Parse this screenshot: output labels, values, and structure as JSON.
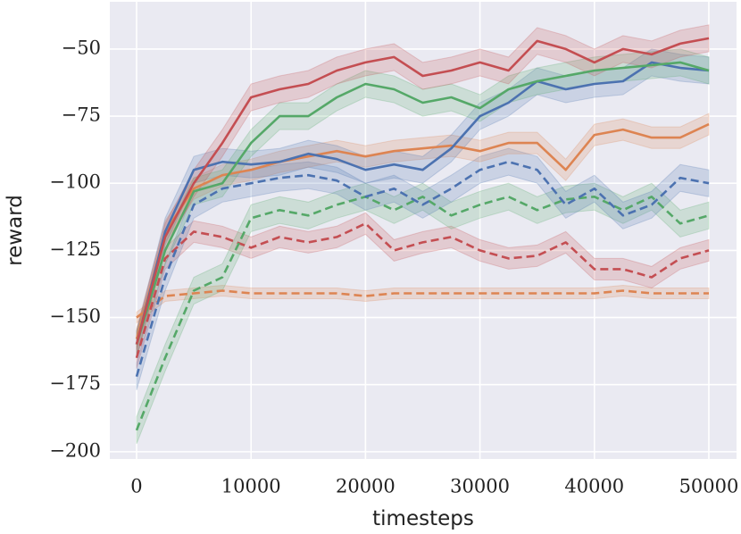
{
  "chart_data": {
    "type": "line",
    "x_label": "timesteps",
    "y_label": "reward",
    "x": [
      0,
      2500,
      5000,
      7500,
      10000,
      12500,
      15000,
      17500,
      20000,
      22500,
      25000,
      27500,
      30000,
      32500,
      35000,
      37500,
      40000,
      42500,
      45000,
      47500,
      50000
    ],
    "xlim": [
      -2340,
      52420
    ],
    "ylim": [
      -202.7,
      -32.4
    ],
    "xticks": [
      0,
      10000,
      20000,
      30000,
      40000,
      50000
    ],
    "yticks": [
      {
        "value": -200,
        "label": "−200"
      },
      {
        "value": -175,
        "label": "−175"
      },
      {
        "value": -150,
        "label": "−150"
      },
      {
        "value": -125,
        "label": "−125"
      },
      {
        "value": -100,
        "label": "−100"
      },
      {
        "value": -75,
        "label": "−75"
      },
      {
        "value": -50,
        "label": "−50"
      }
    ],
    "grid": true,
    "series": [
      {
        "color": "#dd8452",
        "linestyle": "dashed",
        "spread": 2,
        "values": [
          -150,
          -142,
          -141,
          -140,
          -141,
          -141,
          -141,
          -141,
          -142,
          -141,
          -141,
          -141,
          -141,
          -141,
          -141,
          -141,
          -141,
          -140,
          -141,
          -141,
          -141
        ]
      },
      {
        "color": "#c44e52",
        "linestyle": "dashed",
        "spread": 4,
        "values": [
          -165,
          -128,
          -118,
          -120,
          -124,
          -120,
          -122,
          -120,
          -115,
          -125,
          -122,
          -120,
          -125,
          -128,
          -127,
          -122,
          -132,
          -132,
          -135,
          -128,
          -125
        ]
      },
      {
        "color": "#55a868",
        "linestyle": "dashed",
        "spread": 5,
        "values": [
          -192,
          -165,
          -140,
          -135,
          -113,
          -110,
          -112,
          -108,
          -105,
          -110,
          -105,
          -112,
          -108,
          -105,
          -110,
          -106,
          -105,
          -110,
          -105,
          -115,
          -112
        ]
      },
      {
        "color": "#4c72b0",
        "linestyle": "dashed",
        "spread": 5,
        "values": [
          -172,
          -135,
          -108,
          -102,
          -100,
          -98,
          -97,
          -99,
          -105,
          -102,
          -108,
          -102,
          -95,
          -92,
          -95,
          -108,
          -102,
          -112,
          -108,
          -98,
          -100
        ]
      },
      {
        "color": "#dd8452",
        "linestyle": "solid",
        "spread": 4,
        "values": [
          -158,
          -118,
          -102,
          -97,
          -95,
          -92,
          -90,
          -88,
          -90,
          -88,
          -87,
          -86,
          -88,
          -85,
          -85,
          -95,
          -82,
          -80,
          -83,
          -83,
          -78
        ]
      },
      {
        "color": "#4c72b0",
        "linestyle": "solid",
        "spread": 5,
        "values": [
          -160,
          -118,
          -95,
          -92,
          -93,
          -92,
          -89,
          -91,
          -95,
          -93,
          -95,
          -87,
          -75,
          -70,
          -62,
          -65,
          -63,
          -62,
          -55,
          -57,
          -58
        ]
      },
      {
        "color": "#55a868",
        "linestyle": "solid",
        "spread": 5,
        "values": [
          -160,
          -125,
          -103,
          -100,
          -85,
          -75,
          -75,
          -68,
          -63,
          -65,
          -70,
          -68,
          -72,
          -65,
          -62,
          -60,
          -58,
          -57,
          -56,
          -55,
          -58
        ]
      },
      {
        "color": "#c44e52",
        "linestyle": "solid",
        "spread": 5,
        "values": [
          -160,
          -120,
          -100,
          -85,
          -68,
          -65,
          -63,
          -58,
          -55,
          -53,
          -60,
          -58,
          -55,
          -58,
          -47,
          -50,
          -55,
          -50,
          -52,
          -48,
          -46
        ]
      }
    ]
  }
}
